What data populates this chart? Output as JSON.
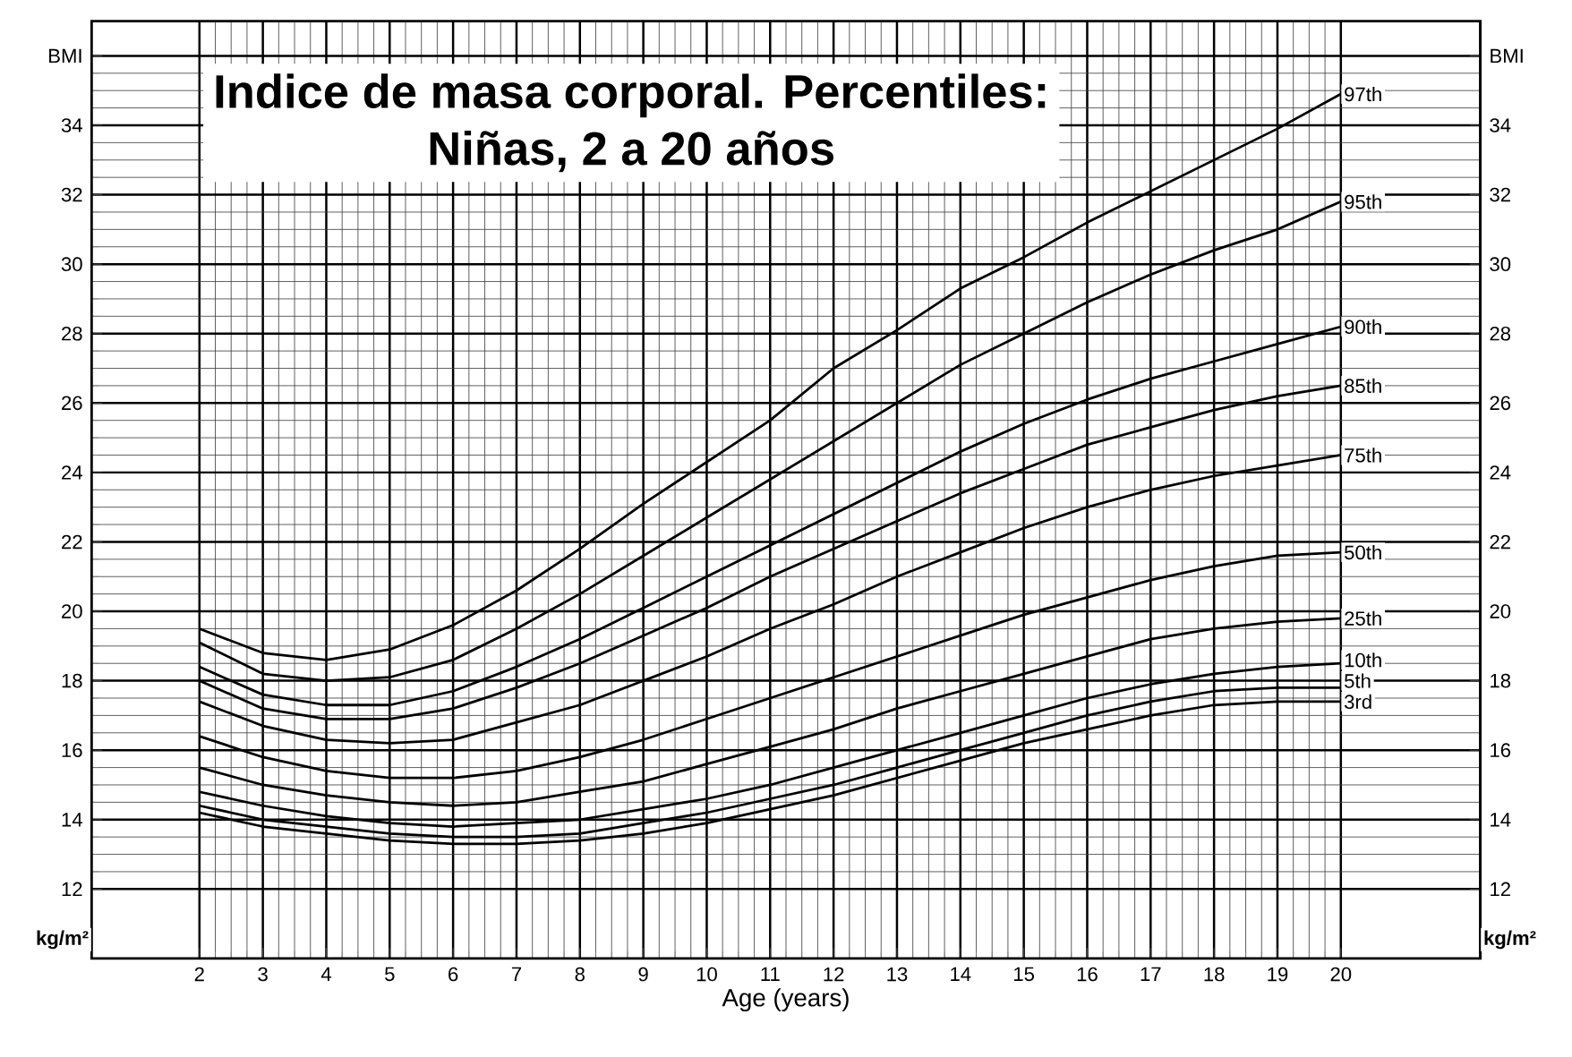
{
  "chart_data": {
    "type": "line",
    "title": "Indice de masa corporal. Percentiles:",
    "subtitle": "Niñas, 2 a 20 años",
    "xlabel": "Age (years)",
    "ylabel": "kg/m²",
    "y2label": "kg/m²",
    "x": [
      2,
      3,
      4,
      5,
      6,
      7,
      8,
      9,
      10,
      11,
      12,
      13,
      14,
      15,
      16,
      17,
      18,
      19,
      20
    ],
    "series": [
      {
        "name": "97th",
        "color": "#000000",
        "values": [
          19.5,
          18.8,
          18.6,
          18.9,
          19.6,
          20.6,
          21.8,
          23.1,
          24.3,
          25.5,
          27.0,
          28.1,
          29.3,
          30.2,
          31.2,
          32.1,
          33.0,
          33.9,
          34.9
        ]
      },
      {
        "name": "95th",
        "color": "#000000",
        "values": [
          19.1,
          18.2,
          18.0,
          18.1,
          18.6,
          19.5,
          20.5,
          21.6,
          22.7,
          23.8,
          24.9,
          26.0,
          27.1,
          28.0,
          28.9,
          29.7,
          30.4,
          31.0,
          31.8
        ]
      },
      {
        "name": "90th",
        "color": "#000000",
        "values": [
          18.4,
          17.6,
          17.3,
          17.3,
          17.7,
          18.4,
          19.2,
          20.1,
          21.0,
          21.9,
          22.8,
          23.7,
          24.6,
          25.4,
          26.1,
          26.7,
          27.2,
          27.7,
          28.2
        ]
      },
      {
        "name": "85th",
        "color": "#000000",
        "values": [
          18.0,
          17.2,
          16.9,
          16.9,
          17.2,
          17.8,
          18.5,
          19.3,
          20.1,
          21.0,
          21.8,
          22.6,
          23.4,
          24.1,
          24.8,
          25.3,
          25.8,
          26.2,
          26.5
        ]
      },
      {
        "name": "75th",
        "color": "#000000",
        "values": [
          17.4,
          16.7,
          16.3,
          16.2,
          16.3,
          16.8,
          17.3,
          18.0,
          18.7,
          19.5,
          20.2,
          21.0,
          21.7,
          22.4,
          23.0,
          23.5,
          23.9,
          24.2,
          24.5
        ]
      },
      {
        "name": "50th",
        "color": "#000000",
        "values": [
          16.4,
          15.8,
          15.4,
          15.2,
          15.2,
          15.4,
          15.8,
          16.3,
          16.9,
          17.5,
          18.1,
          18.7,
          19.3,
          19.9,
          20.4,
          20.9,
          21.3,
          21.6,
          21.7
        ]
      },
      {
        "name": "25th",
        "color": "#000000",
        "values": [
          15.5,
          15.0,
          14.7,
          14.5,
          14.4,
          14.5,
          14.8,
          15.1,
          15.6,
          16.1,
          16.6,
          17.2,
          17.7,
          18.2,
          18.7,
          19.2,
          19.5,
          19.7,
          19.8
        ]
      },
      {
        "name": "10th",
        "color": "#000000",
        "values": [
          14.8,
          14.4,
          14.1,
          13.9,
          13.8,
          13.9,
          14.0,
          14.3,
          14.6,
          15.0,
          15.5,
          16.0,
          16.5,
          17.0,
          17.5,
          17.9,
          18.2,
          18.4,
          18.5
        ]
      },
      {
        "name": "5th",
        "color": "#000000",
        "values": [
          14.4,
          14.0,
          13.8,
          13.6,
          13.5,
          13.5,
          13.6,
          13.9,
          14.2,
          14.6,
          15.0,
          15.5,
          16.0,
          16.5,
          17.0,
          17.4,
          17.7,
          17.8,
          17.8
        ]
      },
      {
        "name": "3rd",
        "color": "#000000",
        "values": [
          14.2,
          13.8,
          13.6,
          13.4,
          13.3,
          13.3,
          13.4,
          13.6,
          13.9,
          14.3,
          14.7,
          15.2,
          15.7,
          16.2,
          16.6,
          17.0,
          17.3,
          17.4,
          17.4
        ]
      }
    ],
    "xlim": [
      0.3,
      22.2
    ],
    "xticks": [
      2,
      3,
      4,
      5,
      6,
      7,
      8,
      9,
      10,
      11,
      12,
      13,
      14,
      15,
      16,
      17,
      18,
      19,
      20
    ],
    "ylim": [
      10,
      37
    ],
    "yticks": [
      12,
      14,
      16,
      18,
      20,
      22,
      24,
      26,
      28,
      30,
      32,
      34,
      {
        "value": 36,
        "label": "BMI"
      }
    ],
    "y2lim": [
      10,
      37
    ],
    "y2ticks": [
      12,
      14,
      16,
      18,
      20,
      22,
      24,
      26,
      28,
      30,
      32,
      34,
      {
        "value": 36,
        "label": "BMI"
      }
    ],
    "grid": true,
    "marker": "none",
    "line_style": "solid"
  }
}
